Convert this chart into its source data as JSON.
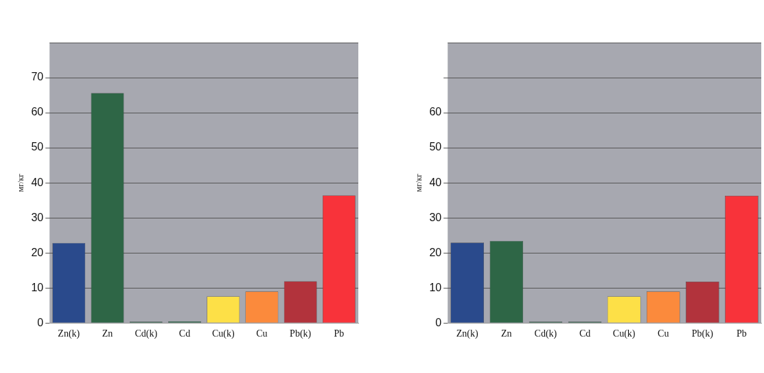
{
  "chart_data": [
    {
      "type": "bar",
      "ylabel": "мг/кг",
      "categories": [
        "Zn(k)",
        "Zn",
        "Cd(k)",
        "Cd",
        "Cu(k)",
        "Cu",
        "Pb(k)",
        "Pb"
      ],
      "values": [
        22.8,
        65.6,
        0.4,
        0.5,
        7.6,
        9.0,
        11.9,
        36.4
      ],
      "colors": [
        "#2a4a8c",
        "#2e6646",
        "#2e6646",
        "#2e6646",
        "#fde047",
        "#fb8a3c",
        "#b2333c",
        "#f8333a"
      ],
      "ylim": [
        0,
        80
      ],
      "yticks": [
        0,
        10,
        20,
        30,
        40,
        50,
        60,
        70
      ],
      "grid": "y"
    },
    {
      "type": "bar",
      "ylabel": "мг/кг",
      "categories": [
        "Zn(k)",
        "Zn",
        "Cd(k)",
        "Cd",
        "Cu(k)",
        "Cu",
        "Pb(k)",
        "Pb"
      ],
      "values": [
        22.9,
        23.4,
        0.4,
        0.4,
        7.6,
        9.0,
        11.8,
        36.3
      ],
      "colors": [
        "#2a4a8c",
        "#2e6646",
        "#2e6646",
        "#2e6646",
        "#fde047",
        "#fb8a3c",
        "#b2333c",
        "#f8333a"
      ],
      "ylim": [
        0,
        80
      ],
      "yticks": [
        0,
        10,
        20,
        30,
        40,
        50,
        60,
        {
          "value": 70,
          "label": null
        }
      ],
      "grid": "y"
    }
  ]
}
